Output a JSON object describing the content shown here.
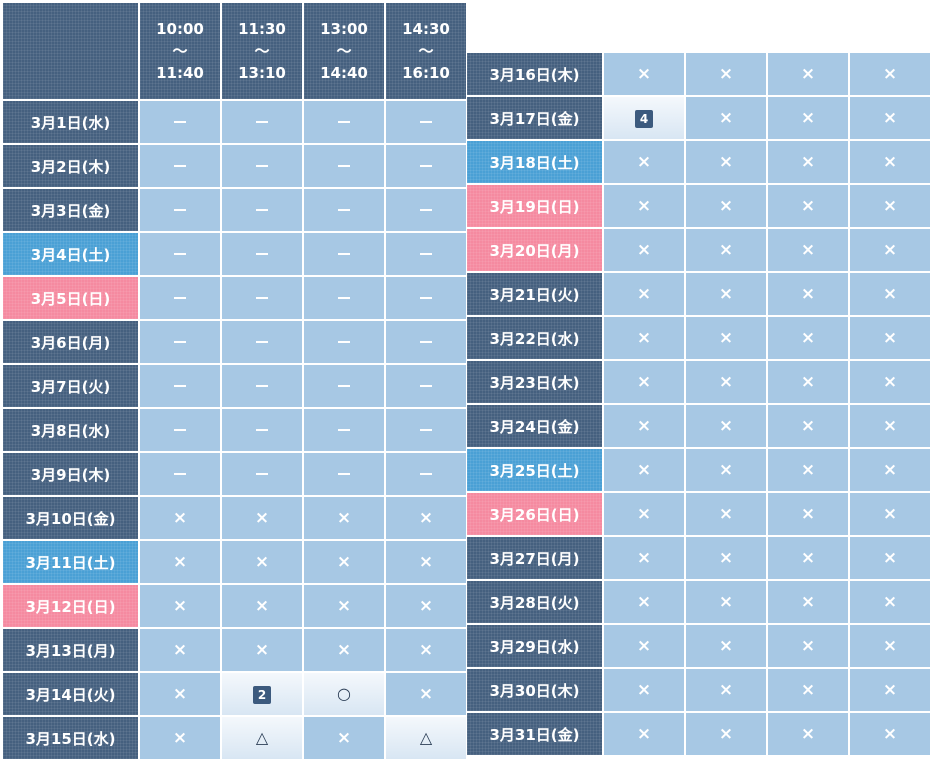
{
  "time_slots": [
    {
      "start": "10:00",
      "sep": "〜",
      "end": "11:40"
    },
    {
      "start": "11:30",
      "sep": "〜",
      "end": "13:10"
    },
    {
      "start": "13:00",
      "sep": "〜",
      "end": "14:40"
    },
    {
      "start": "14:30",
      "sep": "〜",
      "end": "16:10"
    }
  ],
  "symbols": {
    "dash": "—",
    "full": "×",
    "open": "○",
    "few": "△"
  },
  "day_colors": {
    "weekday": "#45607f",
    "saturday": "#4aa0d5",
    "sunday": "#f58aa0"
  },
  "left_rows": [
    {
      "date": "3月1日(水)",
      "type": "weekday",
      "slots": [
        {
          "s": "dash"
        },
        {
          "s": "dash"
        },
        {
          "s": "dash"
        },
        {
          "s": "dash"
        }
      ]
    },
    {
      "date": "3月2日(木)",
      "type": "weekday",
      "slots": [
        {
          "s": "dash"
        },
        {
          "s": "dash"
        },
        {
          "s": "dash"
        },
        {
          "s": "dash"
        }
      ]
    },
    {
      "date": "3月3日(金)",
      "type": "weekday",
      "slots": [
        {
          "s": "dash"
        },
        {
          "s": "dash"
        },
        {
          "s": "dash"
        },
        {
          "s": "dash"
        }
      ]
    },
    {
      "date": "3月4日(土)",
      "type": "saturday",
      "slots": [
        {
          "s": "dash"
        },
        {
          "s": "dash"
        },
        {
          "s": "dash"
        },
        {
          "s": "dash"
        }
      ]
    },
    {
      "date": "3月5日(日)",
      "type": "sunday",
      "slots": [
        {
          "s": "dash"
        },
        {
          "s": "dash"
        },
        {
          "s": "dash"
        },
        {
          "s": "dash"
        }
      ]
    },
    {
      "date": "3月6日(月)",
      "type": "weekday",
      "slots": [
        {
          "s": "dash"
        },
        {
          "s": "dash"
        },
        {
          "s": "dash"
        },
        {
          "s": "dash"
        }
      ]
    },
    {
      "date": "3月7日(火)",
      "type": "weekday",
      "slots": [
        {
          "s": "dash"
        },
        {
          "s": "dash"
        },
        {
          "s": "dash"
        },
        {
          "s": "dash"
        }
      ]
    },
    {
      "date": "3月8日(水)",
      "type": "weekday",
      "slots": [
        {
          "s": "dash"
        },
        {
          "s": "dash"
        },
        {
          "s": "dash"
        },
        {
          "s": "dash"
        }
      ]
    },
    {
      "date": "3月9日(木)",
      "type": "weekday",
      "slots": [
        {
          "s": "dash"
        },
        {
          "s": "dash"
        },
        {
          "s": "dash"
        },
        {
          "s": "dash"
        }
      ]
    },
    {
      "date": "3月10日(金)",
      "type": "weekday",
      "slots": [
        {
          "s": "full"
        },
        {
          "s": "full"
        },
        {
          "s": "full"
        },
        {
          "s": "full"
        }
      ]
    },
    {
      "date": "3月11日(土)",
      "type": "saturday",
      "slots": [
        {
          "s": "full"
        },
        {
          "s": "full"
        },
        {
          "s": "full"
        },
        {
          "s": "full"
        }
      ]
    },
    {
      "date": "3月12日(日)",
      "type": "sunday",
      "slots": [
        {
          "s": "full"
        },
        {
          "s": "full"
        },
        {
          "s": "full"
        },
        {
          "s": "full"
        }
      ]
    },
    {
      "date": "3月13日(月)",
      "type": "weekday",
      "slots": [
        {
          "s": "full"
        },
        {
          "s": "full"
        },
        {
          "s": "full"
        },
        {
          "s": "full"
        }
      ]
    },
    {
      "date": "3月14日(火)",
      "type": "weekday",
      "slots": [
        {
          "s": "full"
        },
        {
          "s": "count",
          "n": "2"
        },
        {
          "s": "open"
        },
        {
          "s": "full"
        }
      ]
    },
    {
      "date": "3月15日(水)",
      "type": "weekday",
      "slots": [
        {
          "s": "full"
        },
        {
          "s": "few"
        },
        {
          "s": "full"
        },
        {
          "s": "few"
        }
      ]
    }
  ],
  "right_rows": [
    {
      "date": "3月16日(木)",
      "type": "weekday",
      "slots": [
        {
          "s": "full"
        },
        {
          "s": "full"
        },
        {
          "s": "full"
        },
        {
          "s": "full"
        }
      ]
    },
    {
      "date": "3月17日(金)",
      "type": "weekday",
      "slots": [
        {
          "s": "count",
          "n": "4"
        },
        {
          "s": "full"
        },
        {
          "s": "full"
        },
        {
          "s": "full"
        }
      ]
    },
    {
      "date": "3月18日(土)",
      "type": "saturday",
      "slots": [
        {
          "s": "full"
        },
        {
          "s": "full"
        },
        {
          "s": "full"
        },
        {
          "s": "full"
        }
      ]
    },
    {
      "date": "3月19日(日)",
      "type": "sunday",
      "slots": [
        {
          "s": "full"
        },
        {
          "s": "full"
        },
        {
          "s": "full"
        },
        {
          "s": "full"
        }
      ]
    },
    {
      "date": "3月20日(月)",
      "type": "sunday",
      "slots": [
        {
          "s": "full"
        },
        {
          "s": "full"
        },
        {
          "s": "full"
        },
        {
          "s": "full"
        }
      ]
    },
    {
      "date": "3月21日(火)",
      "type": "weekday",
      "slots": [
        {
          "s": "full"
        },
        {
          "s": "full"
        },
        {
          "s": "full"
        },
        {
          "s": "full"
        }
      ]
    },
    {
      "date": "3月22日(水)",
      "type": "weekday",
      "slots": [
        {
          "s": "full"
        },
        {
          "s": "full"
        },
        {
          "s": "full"
        },
        {
          "s": "full"
        }
      ]
    },
    {
      "date": "3月23日(木)",
      "type": "weekday",
      "slots": [
        {
          "s": "full"
        },
        {
          "s": "full"
        },
        {
          "s": "full"
        },
        {
          "s": "full"
        }
      ]
    },
    {
      "date": "3月24日(金)",
      "type": "weekday",
      "slots": [
        {
          "s": "full"
        },
        {
          "s": "full"
        },
        {
          "s": "full"
        },
        {
          "s": "full"
        }
      ]
    },
    {
      "date": "3月25日(土)",
      "type": "saturday",
      "slots": [
        {
          "s": "full"
        },
        {
          "s": "full"
        },
        {
          "s": "full"
        },
        {
          "s": "full"
        }
      ]
    },
    {
      "date": "3月26日(日)",
      "type": "sunday",
      "slots": [
        {
          "s": "full"
        },
        {
          "s": "full"
        },
        {
          "s": "full"
        },
        {
          "s": "full"
        }
      ]
    },
    {
      "date": "3月27日(月)",
      "type": "weekday",
      "slots": [
        {
          "s": "full"
        },
        {
          "s": "full"
        },
        {
          "s": "full"
        },
        {
          "s": "full"
        }
      ]
    },
    {
      "date": "3月28日(火)",
      "type": "weekday",
      "slots": [
        {
          "s": "full"
        },
        {
          "s": "full"
        },
        {
          "s": "full"
        },
        {
          "s": "full"
        }
      ]
    },
    {
      "date": "3月29日(水)",
      "type": "weekday",
      "slots": [
        {
          "s": "full"
        },
        {
          "s": "full"
        },
        {
          "s": "full"
        },
        {
          "s": "full"
        }
      ]
    },
    {
      "date": "3月30日(木)",
      "type": "weekday",
      "slots": [
        {
          "s": "full"
        },
        {
          "s": "full"
        },
        {
          "s": "full"
        },
        {
          "s": "full"
        }
      ]
    },
    {
      "date": "3月31日(金)",
      "type": "weekday",
      "slots": [
        {
          "s": "full"
        },
        {
          "s": "full"
        },
        {
          "s": "full"
        },
        {
          "s": "full"
        }
      ]
    }
  ]
}
